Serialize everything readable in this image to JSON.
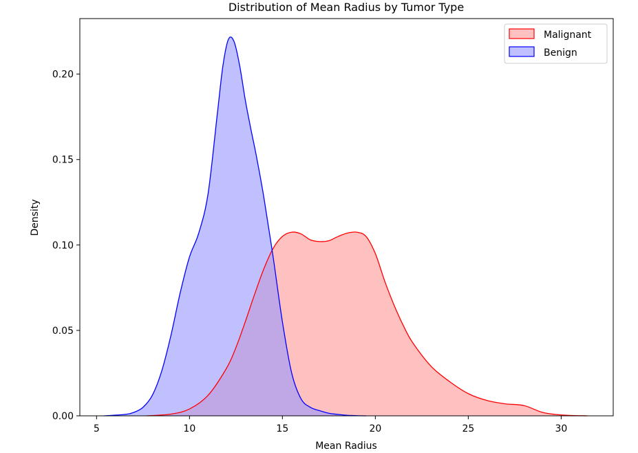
{
  "chart_data": {
    "type": "area",
    "title": "Distribution of Mean Radius by Tumor Type",
    "xlabel": "Mean Radius",
    "ylabel": "Density",
    "xlim": [
      4.1,
      32.8
    ],
    "ylim": [
      0,
      0.2325
    ],
    "xticks": [
      5,
      10,
      15,
      20,
      25,
      30
    ],
    "yticks": [
      0.0,
      0.05,
      0.1,
      0.15,
      0.2
    ],
    "ytick_labels": [
      "0.00",
      "0.05",
      "0.10",
      "0.15",
      "0.20"
    ],
    "legend": {
      "placement": "top-right"
    },
    "grid": false,
    "series": [
      {
        "name": "Malignant",
        "color": "#ff0000",
        "fill": "#ff9999",
        "fill_opacity": 0.62,
        "x": [
          7.7,
          9.0,
          10.0,
          11.0,
          12.0,
          12.5,
          13.0,
          13.5,
          14.0,
          14.5,
          15.0,
          15.5,
          16.0,
          16.5,
          17.0,
          17.5,
          18.0,
          18.5,
          19.0,
          19.5,
          20.0,
          20.5,
          21.0,
          21.5,
          22.0,
          23.0,
          24.0,
          25.0,
          26.0,
          27.0,
          28.0,
          29.0,
          30.0,
          31.4
        ],
        "y": [
          0.0,
          0.001,
          0.004,
          0.012,
          0.028,
          0.04,
          0.055,
          0.071,
          0.086,
          0.098,
          0.105,
          0.1075,
          0.1065,
          0.103,
          0.102,
          0.1025,
          0.105,
          0.107,
          0.1075,
          0.105,
          0.095,
          0.079,
          0.065,
          0.053,
          0.043,
          0.029,
          0.02,
          0.013,
          0.009,
          0.007,
          0.006,
          0.002,
          0.0005,
          0.0
        ]
      },
      {
        "name": "Benign",
        "color": "#0000ff",
        "fill": "#9999ff",
        "fill_opacity": 0.62,
        "x": [
          5.4,
          6.5,
          7.0,
          7.5,
          8.0,
          8.5,
          9.0,
          9.5,
          10.0,
          10.5,
          11.0,
          11.5,
          11.8,
          12.1,
          12.4,
          12.7,
          13.0,
          13.3,
          13.6,
          14.0,
          14.5,
          15.0,
          15.5,
          16.0,
          16.5,
          17.0,
          17.5,
          18.0,
          18.5,
          19.0,
          19.5
        ],
        "y": [
          0.0,
          0.0008,
          0.002,
          0.005,
          0.012,
          0.026,
          0.047,
          0.072,
          0.093,
          0.107,
          0.13,
          0.177,
          0.205,
          0.2205,
          0.219,
          0.205,
          0.185,
          0.168,
          0.152,
          0.128,
          0.093,
          0.055,
          0.025,
          0.01,
          0.005,
          0.003,
          0.0015,
          0.0008,
          0.0003,
          0.0001,
          0.0
        ]
      }
    ]
  }
}
